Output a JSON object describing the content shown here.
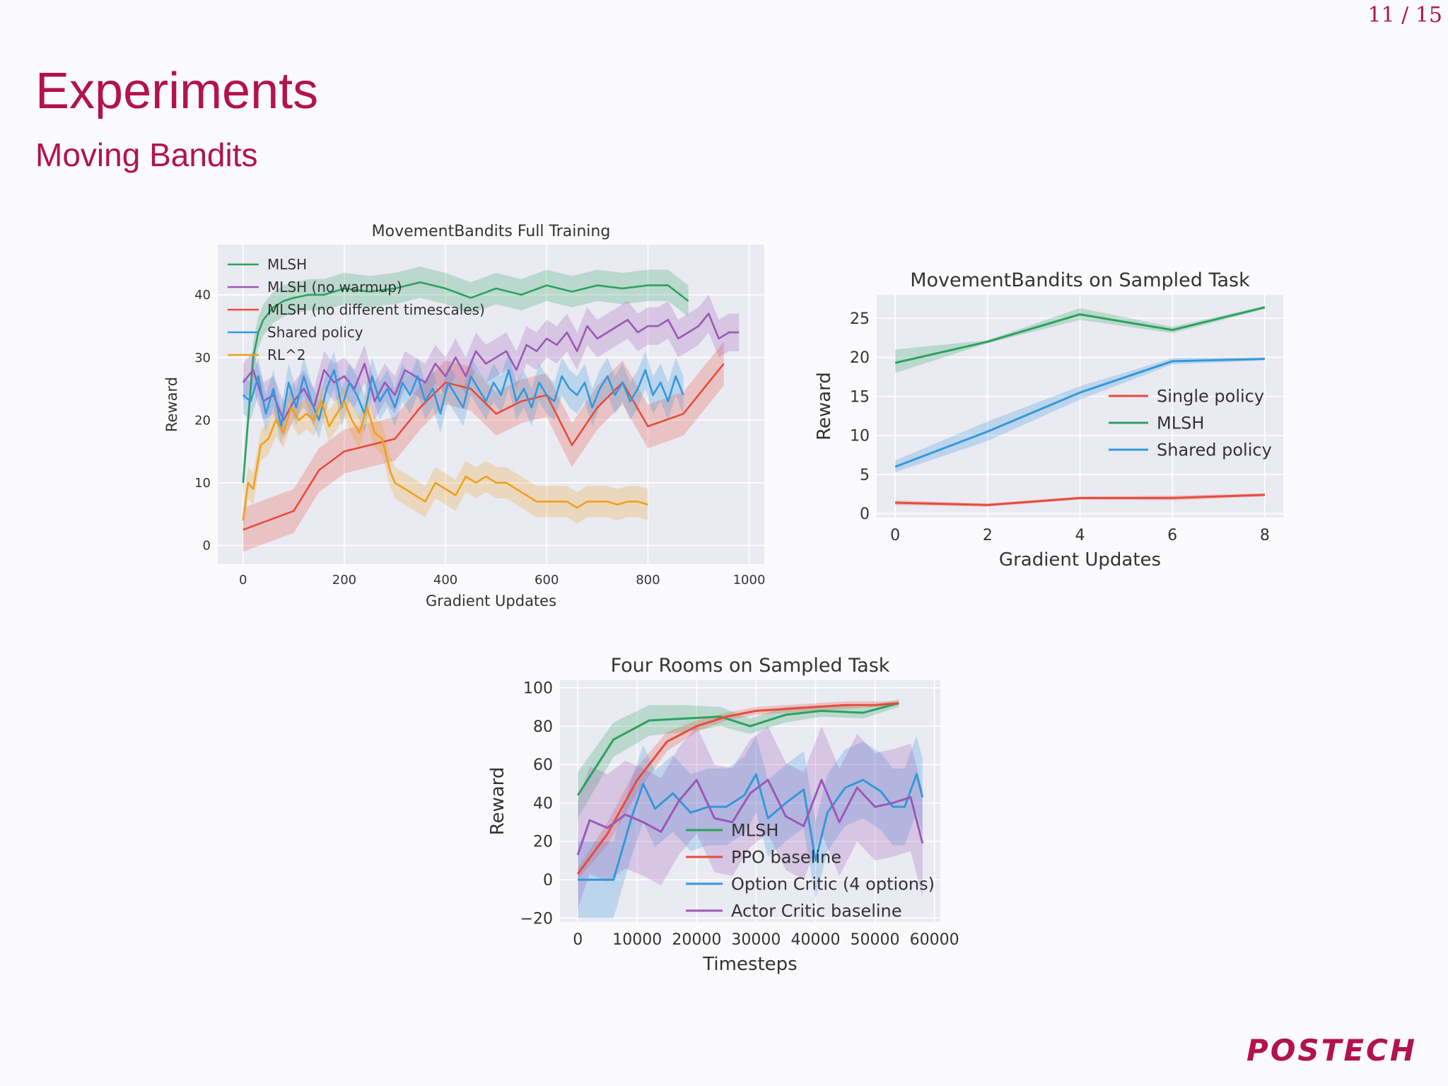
{
  "page": {
    "number": "11 / 15",
    "title": "Experiments",
    "subtitle": "Moving Bandits",
    "logo": "POSTECH"
  },
  "colors": {
    "accent": "#b3124f",
    "green": "#2ca25f",
    "purple": "#9b59b6",
    "red": "#e74c3c",
    "blue": "#3498db",
    "orange": "#f0a01e",
    "plotbg": "#eaeaf2"
  },
  "chart_data": [
    {
      "id": "full",
      "type": "line",
      "title": "MovementBandits Full Training",
      "xlabel": "Gradient Updates",
      "ylabel": "Reward",
      "xlim": [
        -50,
        1030
      ],
      "ylim": [
        -3,
        48
      ],
      "xticks": [
        0,
        200,
        400,
        600,
        800,
        1000
      ],
      "yticks": [
        0,
        10,
        20,
        30,
        40
      ],
      "legend": "upper-left",
      "series": [
        {
          "name": "MLSH",
          "color": "#2ca25f",
          "band": 2.5,
          "x": [
            0,
            10,
            20,
            30,
            40,
            60,
            80,
            100,
            130,
            160,
            200,
            250,
            300,
            350,
            400,
            450,
            500,
            550,
            600,
            650,
            700,
            750,
            800,
            840,
            880
          ],
          "y": [
            10,
            20,
            30,
            34,
            36,
            38,
            39,
            39.5,
            40,
            40,
            41,
            40.5,
            41,
            42,
            41,
            39.5,
            41,
            40,
            41.5,
            40.5,
            41.5,
            41,
            41.5,
            41.5,
            39
          ]
        },
        {
          "name": "MLSH (no warmup)",
          "color": "#9b59b6",
          "band": 3,
          "x": [
            0,
            20,
            40,
            60,
            80,
            100,
            120,
            140,
            160,
            180,
            200,
            220,
            240,
            260,
            280,
            300,
            320,
            340,
            360,
            380,
            400,
            420,
            440,
            460,
            480,
            500,
            520,
            540,
            560,
            580,
            600,
            620,
            640,
            660,
            680,
            700,
            720,
            740,
            760,
            780,
            800,
            820,
            840,
            860,
            880,
            900,
            920,
            940,
            960,
            980
          ],
          "y": [
            26,
            28,
            23,
            24,
            20,
            23,
            25,
            22,
            28,
            26,
            27,
            25,
            29,
            23,
            26,
            24,
            28,
            27,
            26,
            29,
            27,
            30,
            27,
            31,
            29,
            30,
            31,
            28,
            32,
            31,
            33,
            32,
            34,
            31,
            35,
            33,
            34,
            35,
            36,
            34,
            35,
            35,
            36,
            33,
            34,
            35,
            37,
            33,
            34,
            34
          ]
        },
        {
          "name": "MLSH (no different timescales)",
          "color": "#e74c3c",
          "band": 3.5,
          "x": [
            0,
            100,
            150,
            200,
            250,
            300,
            350,
            400,
            450,
            500,
            550,
            600,
            650,
            700,
            750,
            800,
            870,
            950
          ],
          "y": [
            2.5,
            5.5,
            12,
            15,
            16,
            17,
            22,
            26,
            25,
            21,
            23,
            24,
            16,
            22,
            26,
            19,
            21,
            29
          ]
        },
        {
          "name": "Shared policy",
          "color": "#3498db",
          "band": 3,
          "x": [
            0,
            15,
            30,
            45,
            60,
            75,
            90,
            105,
            120,
            135,
            150,
            165,
            180,
            195,
            210,
            225,
            240,
            255,
            270,
            285,
            300,
            315,
            330,
            345,
            360,
            375,
            390,
            405,
            420,
            435,
            450,
            465,
            480,
            495,
            510,
            525,
            540,
            555,
            570,
            585,
            600,
            615,
            630,
            645,
            660,
            675,
            690,
            705,
            720,
            735,
            750,
            765,
            780,
            795,
            810,
            825,
            840,
            855,
            870
          ],
          "y": [
            24,
            23,
            27,
            21,
            25,
            19,
            26,
            22,
            27,
            23,
            20,
            25,
            28,
            22,
            26,
            24,
            21,
            27,
            23,
            25,
            22,
            26,
            24,
            27,
            23,
            25,
            21,
            26,
            24,
            22,
            27,
            25,
            23,
            26,
            24,
            28,
            23,
            25,
            22,
            26,
            24,
            23,
            27,
            25,
            24,
            26,
            22,
            25,
            27,
            24,
            26,
            23,
            25,
            28,
            24,
            26,
            23,
            27,
            24
          ]
        },
        {
          "name": "RL^2",
          "color": "#f0a01e",
          "band": 2.5,
          "x": [
            0,
            10,
            20,
            35,
            50,
            65,
            80,
            95,
            110,
            125,
            140,
            155,
            170,
            185,
            200,
            215,
            230,
            245,
            260,
            275,
            290,
            300,
            320,
            340,
            360,
            380,
            400,
            420,
            440,
            460,
            480,
            500,
            520,
            540,
            560,
            580,
            600,
            620,
            640,
            660,
            680,
            700,
            720,
            740,
            760,
            780,
            800
          ],
          "y": [
            4,
            10,
            9,
            16,
            17,
            20,
            18,
            22,
            20,
            21,
            20,
            23,
            19,
            21,
            23,
            20,
            18,
            22,
            18,
            17,
            12,
            10,
            9,
            8,
            7,
            10,
            9,
            8,
            11,
            10,
            11,
            10,
            10,
            9,
            8,
            7,
            7,
            7,
            7,
            6,
            7,
            7,
            7,
            6.5,
            7,
            7,
            6.5
          ]
        }
      ]
    },
    {
      "id": "sampled",
      "type": "line",
      "title": "MovementBandits on Sampled Task",
      "xlabel": "Gradient Updates",
      "ylabel": "Reward",
      "xlim": [
        -0.4,
        8.4
      ],
      "ylim": [
        -0.5,
        28
      ],
      "xticks": [
        0,
        2,
        4,
        6,
        8
      ],
      "yticks": [
        0,
        5,
        10,
        15,
        20,
        25
      ],
      "legend": "center-right",
      "series": [
        {
          "name": "Single policy",
          "color": "#e74c3c",
          "x": [
            0,
            2,
            4,
            6,
            8
          ],
          "y": [
            1.4,
            1.1,
            2,
            2,
            2.4
          ],
          "lo": [
            1.1,
            0.9,
            1.8,
            1.7,
            2.2
          ],
          "hi": [
            1.7,
            1.3,
            2.2,
            2.3,
            2.6
          ]
        },
        {
          "name": "MLSH",
          "color": "#2ca25f",
          "x": [
            0,
            2,
            4,
            6,
            8
          ],
          "y": [
            19.3,
            22,
            25.5,
            23.5,
            26.4
          ],
          "lo": [
            18,
            21.8,
            24.8,
            23.1,
            26.2
          ],
          "hi": [
            21,
            22.2,
            26.3,
            23.9,
            26.6
          ]
        },
        {
          "name": "Shared policy",
          "color": "#3498db",
          "x": [
            0,
            2,
            4,
            6,
            8
          ],
          "y": [
            6,
            10.5,
            15.5,
            19.5,
            19.8
          ],
          "lo": [
            5.3,
            9.3,
            14.6,
            19.1,
            19.6
          ],
          "hi": [
            6.8,
            11.8,
            16.3,
            19.9,
            20
          ]
        }
      ]
    },
    {
      "id": "fourrooms",
      "type": "line",
      "title": "Four Rooms on Sampled Task",
      "xlabel": "Timesteps",
      "ylabel": "Reward",
      "xlim": [
        -3000,
        61000
      ],
      "ylim": [
        -22,
        104
      ],
      "xticks": [
        0,
        10000,
        20000,
        30000,
        40000,
        50000,
        60000
      ],
      "yticks": [
        -20,
        0,
        20,
        40,
        60,
        80,
        100
      ],
      "legend": "lower-center",
      "series": [
        {
          "name": "MLSH",
          "color": "#2ca25f",
          "x": [
            0,
            6000,
            12000,
            18000,
            24000,
            29000,
            35000,
            41000,
            48000,
            54000
          ],
          "y": [
            44,
            73,
            83,
            84,
            85,
            80,
            86,
            88,
            87,
            92
          ],
          "lo": [
            32,
            64,
            75,
            77,
            80,
            76,
            82,
            85,
            84,
            90
          ],
          "hi": [
            56,
            82,
            91,
            91,
            90,
            84,
            90,
            91,
            90,
            94
          ]
        },
        {
          "name": "PPO baseline",
          "color": "#e74c3c",
          "x": [
            0,
            5000,
            10000,
            15000,
            20000,
            25000,
            30000,
            35000,
            40000,
            45000,
            50000,
            54000
          ],
          "y": [
            3,
            24,
            52,
            72,
            80,
            85,
            88,
            89,
            90,
            91,
            91,
            92
          ],
          "lo": [
            0,
            18,
            45,
            67,
            77,
            83,
            86,
            87,
            88,
            89,
            90,
            91
          ],
          "hi": [
            6,
            30,
            59,
            77,
            83,
            87,
            90,
            91,
            92,
            93,
            93,
            93
          ]
        },
        {
          "name": "Option Critic (4 options)",
          "color": "#3498db",
          "x": [
            0,
            3000,
            6000,
            9000,
            11000,
            13000,
            16000,
            19000,
            22000,
            25000,
            28000,
            30000,
            32000,
            35000,
            38000,
            40000,
            42000,
            45000,
            48000,
            51000,
            53000,
            55000,
            57000,
            58000
          ],
          "y": [
            0,
            0,
            0,
            32,
            50,
            37,
            45,
            35,
            38,
            38,
            44,
            55,
            32,
            40,
            47,
            10,
            35,
            48,
            52,
            46,
            38,
            38,
            55,
            43
          ],
          "band": 20
        },
        {
          "name": "Actor Critic baseline",
          "color": "#9b59b6",
          "x": [
            0,
            2000,
            5000,
            8000,
            11000,
            14000,
            17000,
            20000,
            23000,
            26000,
            29000,
            32000,
            35000,
            38000,
            41000,
            44000,
            47000,
            50000,
            53000,
            56000,
            58000
          ],
          "y": [
            13,
            31,
            27,
            34,
            30,
            25,
            41,
            52,
            32,
            30,
            45,
            52,
            33,
            28,
            52,
            30,
            48,
            38,
            40,
            43,
            19
          ],
          "band": 28
        }
      ]
    }
  ]
}
